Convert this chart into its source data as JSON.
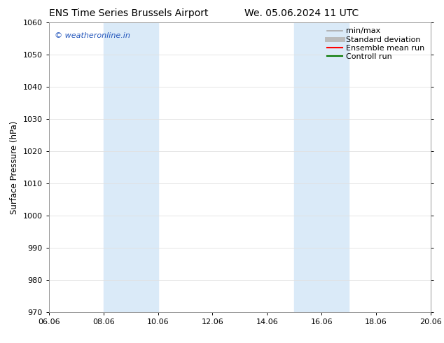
{
  "title_left": "ENS Time Series Brussels Airport",
  "title_right": "We. 05.06.2024 11 UTC",
  "ylabel": "Surface Pressure (hPa)",
  "ylim": [
    970,
    1060
  ],
  "yticks": [
    970,
    980,
    990,
    1000,
    1010,
    1020,
    1030,
    1040,
    1050,
    1060
  ],
  "xlim": [
    0,
    14
  ],
  "xtick_positions": [
    0,
    2,
    4,
    6,
    8,
    10,
    12,
    14
  ],
  "xtick_labels": [
    "06.06",
    "08.06",
    "10.06",
    "12.06",
    "14.06",
    "16.06",
    "18.06",
    "20.06"
  ],
  "shaded_bands": [
    {
      "x_start": 2.0,
      "x_end": 4.0
    },
    {
      "x_start": 9.0,
      "x_end": 11.0
    }
  ],
  "band_color": "#daeaf8",
  "watermark_text": "© weatheronline.in",
  "watermark_color": "#2255bb",
  "legend_items": [
    {
      "label": "min/max",
      "color": "#aaaaaa",
      "lw": 1.2,
      "ls": "-"
    },
    {
      "label": "Standard deviation",
      "color": "#bbbbbb",
      "lw": 5,
      "ls": "-"
    },
    {
      "label": "Ensemble mean run",
      "color": "#ff0000",
      "lw": 1.5,
      "ls": "-"
    },
    {
      "label": "Controll run",
      "color": "#007700",
      "lw": 1.5,
      "ls": "-"
    }
  ],
  "bg_color": "#ffffff",
  "title_fontsize": 10,
  "tick_fontsize": 8,
  "ylabel_fontsize": 8.5,
  "legend_fontsize": 8
}
